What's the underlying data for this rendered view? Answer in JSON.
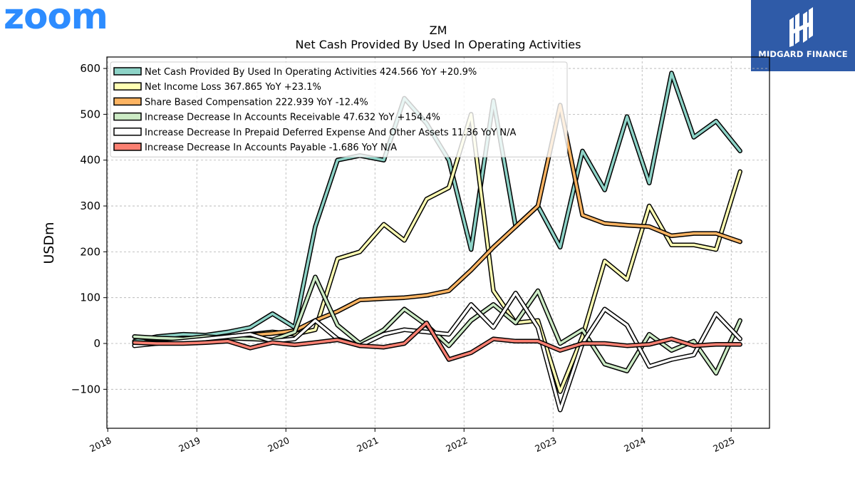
{
  "branding": {
    "left_logo_text": "zoom",
    "left_logo_color": "#2d8cff",
    "right_logo_text": "MIDGARD FINANCE",
    "right_logo_bg": "#2f5ba8"
  },
  "chart_data": {
    "type": "line",
    "title": "ZM",
    "subtitle": "Net Cash Provided By Used In Operating Activities",
    "ylabel": "USDm",
    "xlabel": "",
    "ylim": [
      -185,
      625
    ],
    "xlim": [
      2017.99,
      2025.43
    ],
    "yticks": [
      -100,
      0,
      100,
      200,
      300,
      400,
      500,
      600
    ],
    "ytick_labels": [
      "−100",
      "0",
      "100",
      "200",
      "300",
      "400",
      "500",
      "600"
    ],
    "xticks": [
      2018,
      2019,
      2020,
      2021,
      2022,
      2023,
      2024,
      2025
    ],
    "xtick_labels": [
      "2018",
      "2019",
      "2020",
      "2021",
      "2022",
      "2023",
      "2024",
      "2025"
    ],
    "grid": true,
    "legend_position": "top-left",
    "x": [
      2018.3,
      2018.55,
      2018.85,
      2019.1,
      2019.35,
      2019.6,
      2019.85,
      2020.1,
      2020.33,
      2020.58,
      2020.83,
      2021.1,
      2021.33,
      2021.58,
      2021.83,
      2022.08,
      2022.33,
      2022.58,
      2022.83,
      2023.08,
      2023.33,
      2023.58,
      2023.83,
      2024.08,
      2024.33,
      2024.58,
      2024.83,
      2025.1
    ],
    "series": [
      {
        "name": "Net Cash Provided By Used In Operating Activities  424.566 YoY +20.9%",
        "color": "#8dd3c7",
        "values": [
          5,
          15,
          20,
          18,
          25,
          35,
          65,
          35,
          255,
          400,
          410,
          400,
          535,
          480,
          400,
          205,
          530,
          255,
          300,
          210,
          420,
          335,
          495,
          350,
          590,
          450,
          485,
          420
        ]
      },
      {
        "name": "Net Income Loss  367.865 YoY +23.1%",
        "color": "#ffffb3",
        "values": [
          15,
          10,
          8,
          12,
          15,
          20,
          25,
          20,
          30,
          185,
          200,
          260,
          225,
          315,
          340,
          500,
          115,
          45,
          50,
          -105,
          15,
          180,
          140,
          300,
          215,
          215,
          205,
          375
        ]
      },
      {
        "name": "Share Based Compensation  222.939 YoY -12.4%",
        "color": "#fdb462",
        "values": [
          0,
          2,
          4,
          8,
          14,
          18,
          22,
          28,
          50,
          70,
          95,
          98,
          100,
          105,
          115,
          160,
          210,
          255,
          300,
          520,
          280,
          262,
          258,
          255,
          235,
          240,
          240,
          222
        ]
      },
      {
        "name": "Increase Decrease In Accounts Receivable  47.632 YoY +154.4%",
        "color": "#ccebc5",
        "values": [
          15,
          12,
          10,
          15,
          12,
          10,
          8,
          25,
          145,
          40,
          0,
          30,
          75,
          40,
          -5,
          50,
          85,
          45,
          115,
          0,
          30,
          -45,
          -60,
          20,
          -15,
          5,
          -65,
          50
        ]
      },
      {
        "name": "Increase Decrease In Prepaid Deferred Expense And Other Assets  11.36 YoY N/A",
        "color": "#ffffff",
        "values": [
          -5,
          0,
          5,
          10,
          15,
          20,
          5,
          10,
          50,
          10,
          -5,
          20,
          30,
          25,
          20,
          85,
          35,
          110,
          35,
          -145,
          0,
          75,
          40,
          -50,
          -35,
          -25,
          65,
          10
        ]
      },
      {
        "name": "Increase Decrease In Accounts Payable  -1.686 YoY N/A",
        "color": "#fb8072",
        "values": [
          2,
          0,
          0,
          2,
          5,
          -10,
          2,
          -3,
          2,
          8,
          -5,
          -8,
          0,
          45,
          -35,
          -20,
          10,
          5,
          5,
          -15,
          0,
          0,
          -5,
          -2,
          10,
          -5,
          -2,
          -2
        ]
      }
    ]
  }
}
